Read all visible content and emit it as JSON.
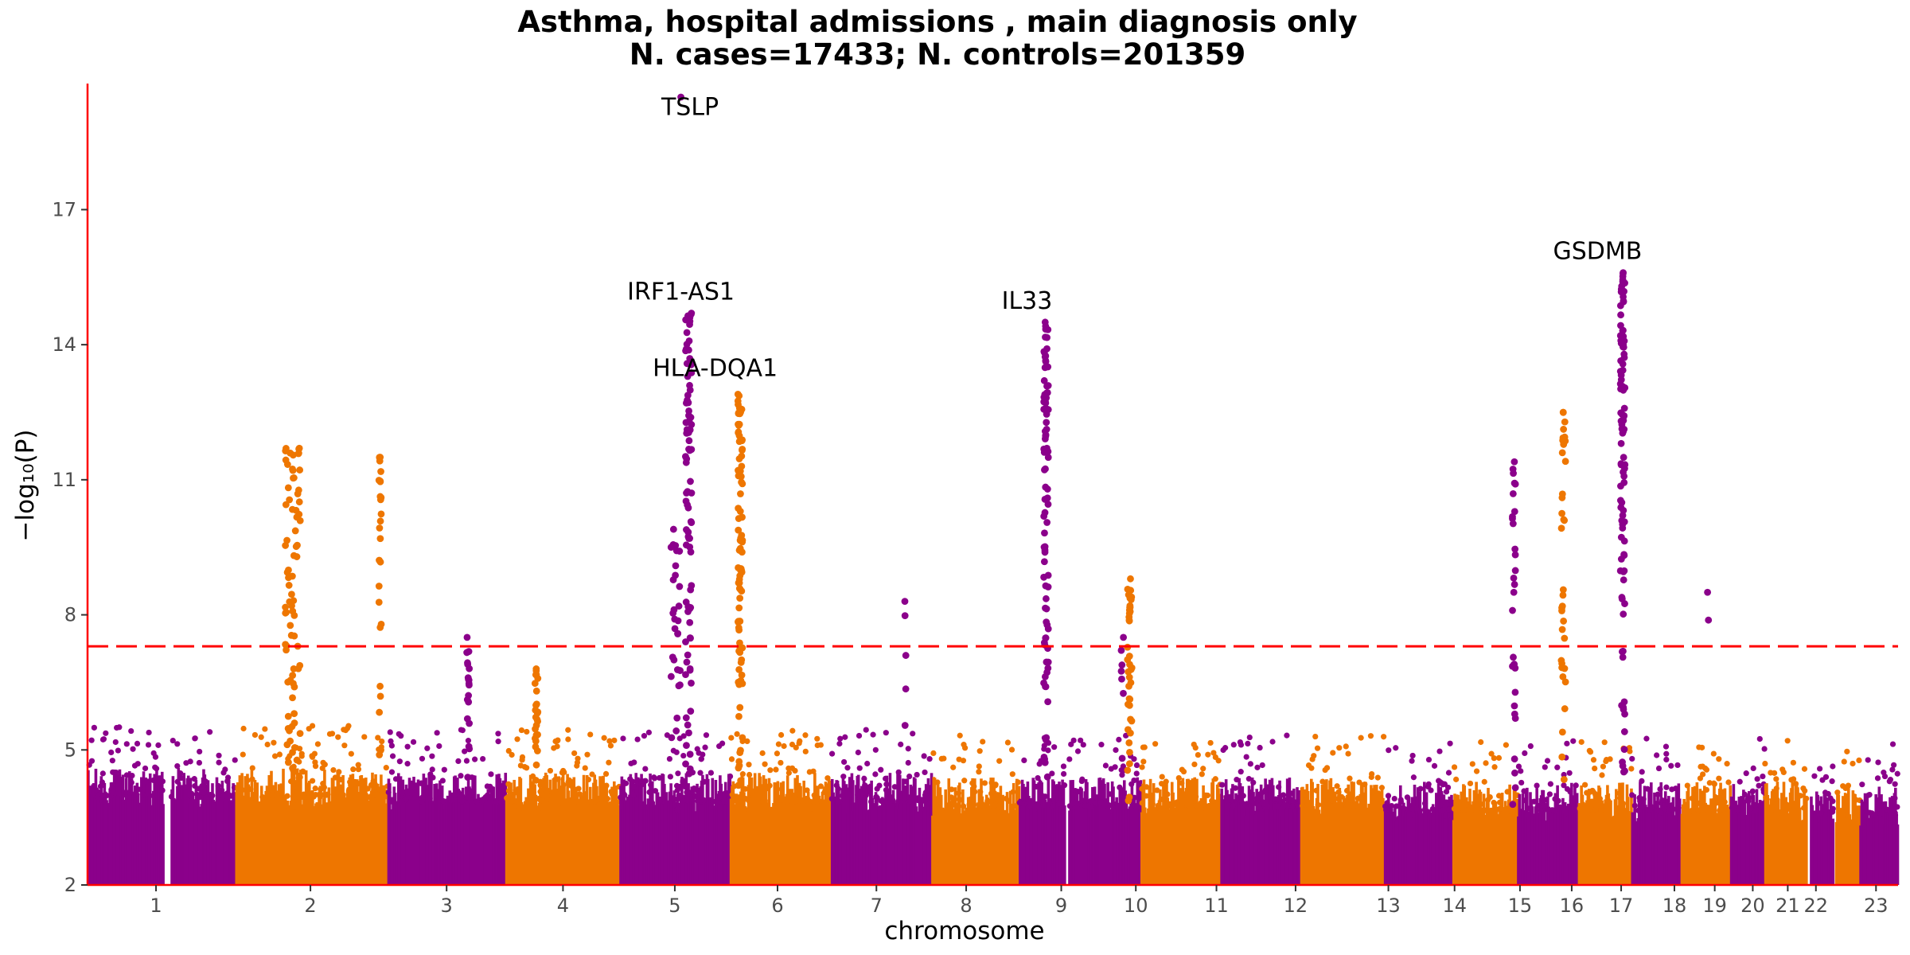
{
  "chart_data": {
    "type": "scatter",
    "subtype": "manhattan",
    "title_line1": "Asthma, hospital admissions , main diagnosis only",
    "title_line2": "N. cases=17433; N. controls=201359",
    "xlabel": "chromosome",
    "ylabel": "−log₁₀(P)",
    "ylim": [
      2,
      19.8
    ],
    "xlim": [
      0,
      23.8
    ],
    "y_ticks": [
      2,
      5,
      8,
      11,
      14,
      17
    ],
    "threshold": 7.3,
    "colors": {
      "purple": "#8B008B",
      "orange": "#EE7600",
      "threshold": "#FF0000",
      "axis": "#FF0000"
    },
    "chromosomes": [
      {
        "label": "1",
        "start": 0.0,
        "end": 1.0,
        "tick": 0.9,
        "color": "purple",
        "base_max": 3.9
      },
      {
        "label": "",
        "start": 1.1,
        "end": 1.95,
        "tick": null,
        "color": "purple",
        "base_max": 3.9
      },
      {
        "label": "2",
        "start": 1.95,
        "end": 3.95,
        "tick": 2.93,
        "color": "orange",
        "base_max": 3.9
      },
      {
        "label": "3",
        "start": 3.95,
        "end": 5.5,
        "tick": 4.72,
        "color": "purple",
        "base_max": 3.8
      },
      {
        "label": "4",
        "start": 5.5,
        "end": 7.0,
        "tick": 6.25,
        "color": "orange",
        "base_max": 3.8
      },
      {
        "label": "5",
        "start": 7.0,
        "end": 8.45,
        "tick": 7.72,
        "color": "purple",
        "base_max": 3.8
      },
      {
        "label": "6",
        "start": 8.45,
        "end": 9.78,
        "tick": 9.07,
        "color": "orange",
        "base_max": 3.8
      },
      {
        "label": "7",
        "start": 9.78,
        "end": 11.1,
        "tick": 10.37,
        "color": "purple",
        "base_max": 3.8
      },
      {
        "label": "8",
        "start": 11.1,
        "end": 12.25,
        "tick": 11.55,
        "color": "orange",
        "base_max": 3.7
      },
      {
        "label": "",
        "start": 12.25,
        "end": 12.85,
        "tick": null,
        "color": "purple",
        "base_max": 3.7
      },
      {
        "label": "9",
        "start": 12.9,
        "end": 13.85,
        "tick": 12.8,
        "color": "purple",
        "base_max": 3.7
      },
      {
        "label": "10",
        "start": 13.85,
        "end": 14.9,
        "tick": 13.78,
        "color": "orange",
        "base_max": 3.7
      },
      {
        "label": "11",
        "start": 14.9,
        "end": 15.95,
        "tick": 14.84,
        "color": "purple",
        "base_max": 3.7
      },
      {
        "label": "12",
        "start": 15.95,
        "end": 17.05,
        "tick": 15.88,
        "color": "orange",
        "base_max": 3.7
      },
      {
        "label": "13",
        "start": 17.05,
        "end": 17.95,
        "tick": 17.1,
        "color": "purple",
        "base_max": 3.6
      },
      {
        "label": "14",
        "start": 17.95,
        "end": 18.8,
        "tick": 17.97,
        "color": "orange",
        "base_max": 3.6
      },
      {
        "label": "15",
        "start": 18.8,
        "end": 19.6,
        "tick": 18.83,
        "color": "purple",
        "base_max": 3.6
      },
      {
        "label": "16",
        "start": 19.6,
        "end": 20.3,
        "tick": 19.51,
        "color": "orange",
        "base_max": 3.6
      },
      {
        "label": "17",
        "start": 20.3,
        "end": 20.95,
        "tick": 20.16,
        "color": "purple",
        "base_max": 3.6
      },
      {
        "label": "18",
        "start": 20.95,
        "end": 21.6,
        "tick": 20.86,
        "color": "orange",
        "base_max": 3.6
      },
      {
        "label": "19",
        "start": 21.6,
        "end": 22.05,
        "tick": 21.39,
        "color": "purple",
        "base_max": 3.6
      },
      {
        "label": "20",
        "start": 22.05,
        "end": 22.6,
        "tick": 21.89,
        "color": "orange",
        "base_max": 3.6
      },
      {
        "label": "21",
        "start": 22.65,
        "end": 22.95,
        "tick": 22.35,
        "color": "purple",
        "base_max": 3.5
      },
      {
        "label": "22",
        "start": 22.98,
        "end": 23.3,
        "tick": 22.72,
        "color": "orange",
        "base_max": 3.5
      },
      {
        "label": "23",
        "start": 23.3,
        "end": 23.8,
        "tick": 23.51,
        "color": "purple",
        "base_max": 3.5
      }
    ],
    "peaks": [
      {
        "x": 2.7,
        "top": 11.7,
        "color": "orange",
        "n": 80,
        "spread": 0.1
      },
      {
        "x": 3.85,
        "top": 11.5,
        "color": "orange",
        "n": 25,
        "spread": 0.02
      },
      {
        "x": 5.0,
        "top": 7.5,
        "color": "purple",
        "n": 20,
        "spread": 0.02
      },
      {
        "x": 5.9,
        "top": 6.8,
        "color": "orange",
        "n": 25,
        "spread": 0.02
      },
      {
        "x": 7.73,
        "top": 9.9,
        "color": "purple",
        "n": 30,
        "spread": 0.06
      },
      {
        "x": 7.8,
        "top": 19.5,
        "color": "purple",
        "n": 1,
        "spread": 0.0
      },
      {
        "x": 7.9,
        "top": 14.7,
        "color": "purple",
        "n": 90,
        "spread": 0.04
      },
      {
        "x": 8.58,
        "top": 12.9,
        "color": "orange",
        "n": 90,
        "spread": 0.03
      },
      {
        "x": 10.75,
        "top": 8.3,
        "color": "purple",
        "n": 5,
        "spread": 0.01
      },
      {
        "x": 12.6,
        "top": 14.5,
        "color": "purple",
        "n": 90,
        "spread": 0.03
      },
      {
        "x": 13.6,
        "top": 7.5,
        "color": "purple",
        "n": 8,
        "spread": 0.02
      },
      {
        "x": 13.7,
        "top": 8.8,
        "color": "orange",
        "n": 40,
        "spread": 0.03
      },
      {
        "x": 18.75,
        "top": 11.4,
        "color": "purple",
        "n": 30,
        "spread": 0.02
      },
      {
        "x": 19.4,
        "top": 12.5,
        "color": "orange",
        "n": 35,
        "spread": 0.03
      },
      {
        "x": 20.18,
        "top": 15.6,
        "color": "purple",
        "n": 100,
        "spread": 0.03
      },
      {
        "x": 21.3,
        "top": 8.5,
        "color": "purple",
        "n": 2,
        "spread": 0.01
      }
    ],
    "gene_labels": [
      {
        "text": "TSLP",
        "x": 7.92,
        "y": 19.1
      },
      {
        "text": "IRF1-AS1",
        "x": 7.8,
        "y": 15.0
      },
      {
        "text": "HLA-DQA1",
        "x": 8.25,
        "y": 13.3
      },
      {
        "text": "IL33",
        "x": 12.35,
        "y": 14.8
      },
      {
        "text": "GSDMB",
        "x": 19.85,
        "y": 15.9
      }
    ]
  }
}
